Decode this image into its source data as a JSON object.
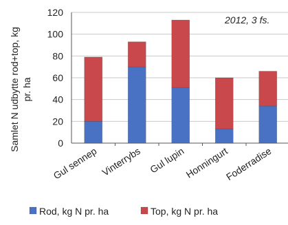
{
  "chart_data": {
    "type": "bar",
    "stacked": true,
    "categories": [
      "Gul sennep",
      "Vinterrybs",
      "Gul lupin",
      "Honningurt",
      "Foderradise"
    ],
    "series": [
      {
        "name": "Rod, kg N pr. ha",
        "values": [
          20,
          70,
          51,
          13,
          34
        ],
        "color": "#4a72c4"
      },
      {
        "name": "Top, kg N pr. ha",
        "values": [
          59,
          23,
          62,
          47,
          32
        ],
        "color": "#c8484b"
      }
    ],
    "ylabel_lines": [
      "Samlet N udbytte rod+top, kg",
      "pr. ha"
    ],
    "yticks": [
      0,
      20,
      40,
      60,
      80,
      100,
      120
    ],
    "ylim": [
      0,
      120
    ],
    "annotation": "2012, 3 fs.",
    "grid": true,
    "legend": "bottom"
  }
}
